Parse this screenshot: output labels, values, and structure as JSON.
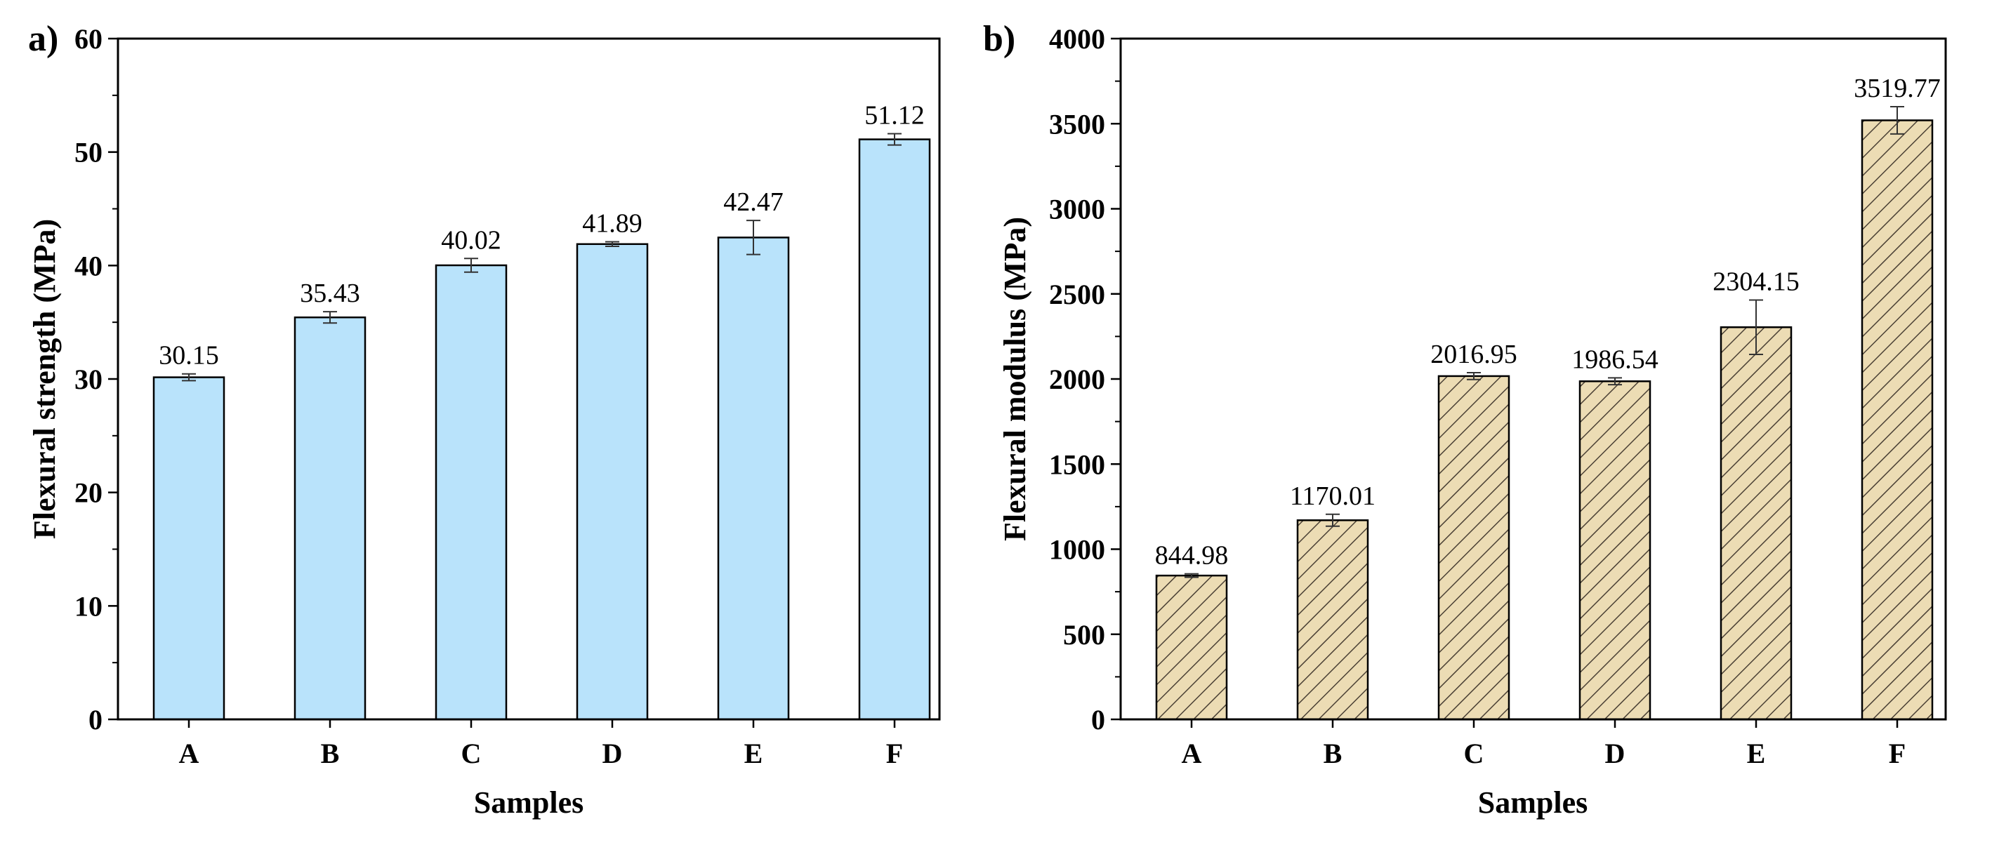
{
  "chart_data": [
    {
      "panel": "a)",
      "type": "bar",
      "title": "",
      "categories": [
        "A",
        "B",
        "C",
        "D",
        "E",
        "F"
      ],
      "values": [
        30.15,
        35.43,
        40.02,
        41.89,
        42.47,
        51.12
      ],
      "value_labels": [
        "30.15",
        "35.43",
        "40.02",
        "41.89",
        "42.47",
        "51.12"
      ],
      "errors": [
        0.3,
        0.5,
        0.6,
        0.2,
        1.5,
        0.5
      ],
      "xlabel": "Samples",
      "ylabel": "Flexural strength (MPa)",
      "ylim": [
        0,
        60
      ],
      "yticks": [
        0,
        10,
        20,
        30,
        40,
        50,
        60
      ],
      "ytick_labels": [
        "0",
        "10",
        "20",
        "30",
        "40",
        "50",
        "60"
      ],
      "bar_color": "#b9e3fb",
      "bar_pattern": "solid",
      "grid": false
    },
    {
      "panel": "b)",
      "type": "bar",
      "title": "",
      "categories": [
        "A",
        "B",
        "C",
        "D",
        "E",
        "F"
      ],
      "values": [
        844.98,
        1170.01,
        2016.95,
        1986.54,
        2304.15,
        3519.77
      ],
      "value_labels": [
        "844.98",
        "1170.01",
        "2016.95",
        "1986.54",
        "2304.15",
        "3519.77"
      ],
      "errors": [
        10,
        35,
        20,
        20,
        160,
        80
      ],
      "xlabel": "Samples",
      "ylabel": "Flexural modulus (MPa)",
      "ylim": [
        0,
        4000
      ],
      "yticks": [
        0,
        500,
        1000,
        1500,
        2000,
        2500,
        3000,
        3500,
        4000
      ],
      "ytick_labels": [
        "0",
        "500",
        "1000",
        "1500",
        "2000",
        "2500",
        "3000",
        "3500",
        "4000"
      ],
      "bar_color": "#ecdcb4",
      "bar_pattern": "hatched",
      "hatch_color": "#4a4034",
      "grid": false
    }
  ]
}
